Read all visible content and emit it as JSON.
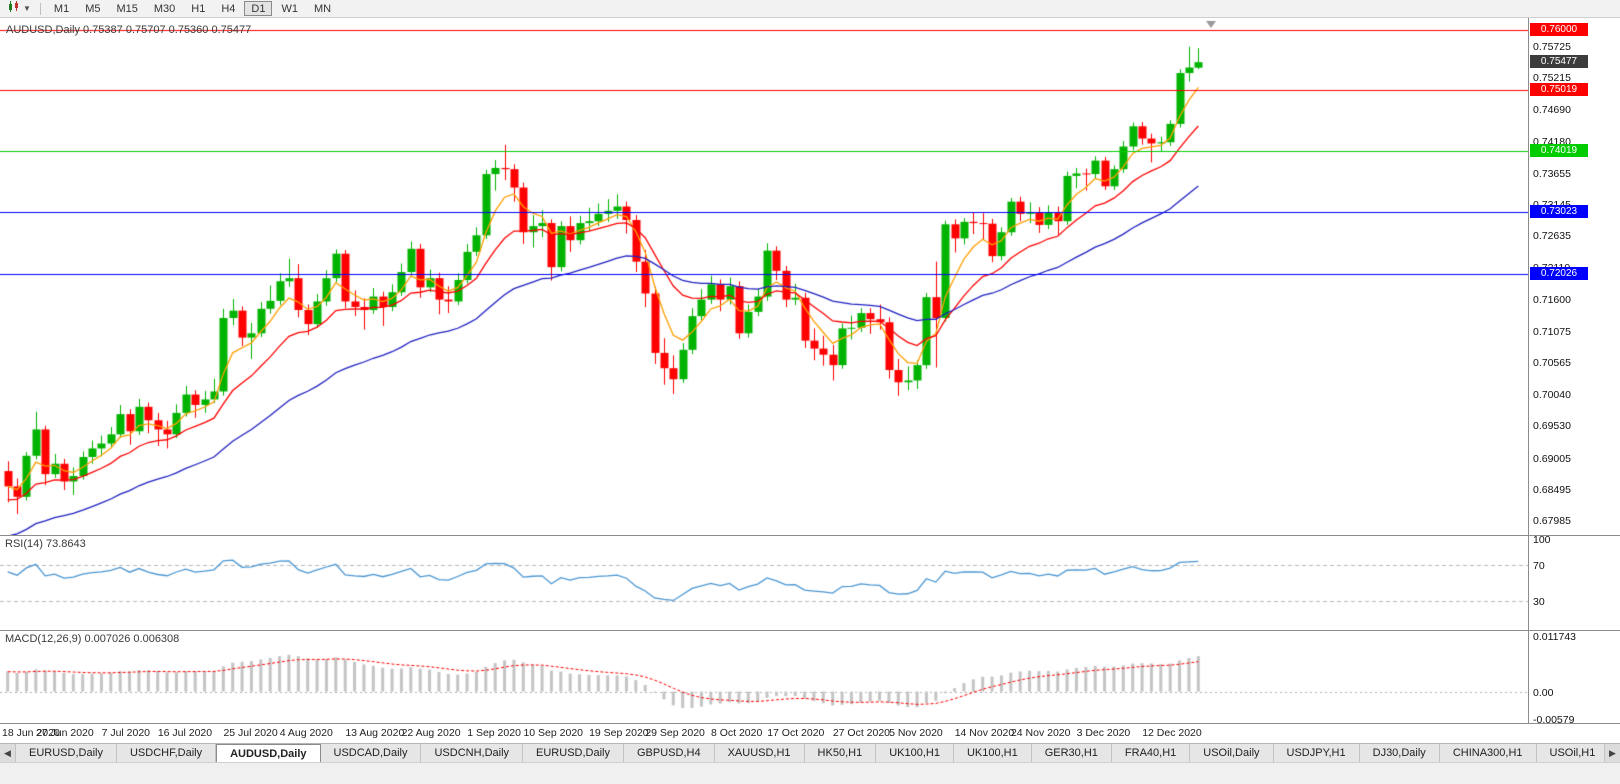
{
  "toolbar": {
    "timeframes": [
      {
        "label": "M1",
        "active": false
      },
      {
        "label": "M5",
        "active": false
      },
      {
        "label": "M15",
        "active": false
      },
      {
        "label": "M30",
        "active": false
      },
      {
        "label": "H1",
        "active": false
      },
      {
        "label": "H4",
        "active": false
      },
      {
        "label": "D1",
        "active": true
      },
      {
        "label": "W1",
        "active": false
      },
      {
        "label": "MN",
        "active": false
      }
    ]
  },
  "chart": {
    "title": "AUDUSD,Daily 0.75387 0.75707 0.75360 0.75477",
    "y_ticks": [
      "0.75725",
      "0.75215",
      "0.74690",
      "0.74180",
      "0.73655",
      "0.73145",
      "0.72635",
      "0.72110",
      "0.71600",
      "0.71075",
      "0.70565",
      "0.70040",
      "0.69530",
      "0.69005",
      "0.68495",
      "0.67985"
    ],
    "current_price_label": "0.75477",
    "current_price_value": 0.75477,
    "current_price_box_color": "#3c3c3c"
  },
  "chart_data": {
    "type": "candlestick",
    "symbol": "AUDUSD",
    "timeframe": "Daily",
    "last_bar": {
      "open": "0.75387",
      "high": "0.75707",
      "low": "0.75360",
      "close": "0.75477"
    },
    "y_axis_top_value": 0.75725,
    "y_axis_bottom_value": 0.67985,
    "up_color": "#00b300",
    "down_color": "#ff0000",
    "hlines": [
      {
        "price": 0.76,
        "label": "0.76000",
        "color": "#ff0000"
      },
      {
        "price": 0.75019,
        "label": "0.75019",
        "color": "#ff0000"
      },
      {
        "price": 0.74019,
        "label": "0.74019",
        "color": "#00cc00"
      },
      {
        "price": 0.73023,
        "label": "0.73023",
        "color": "#0000ff"
      },
      {
        "price": 0.72026,
        "label": "0.72026",
        "color": "#0000ff"
      }
    ],
    "mas": [
      {
        "name": "fast-ma",
        "type": "ema",
        "period": 5,
        "color": "#ff9f00"
      },
      {
        "name": "mid-ma",
        "type": "ema",
        "period": 13,
        "color": "#ff0000"
      },
      {
        "name": "slow-ma",
        "type": "ema",
        "period": 34,
        "color": "#2020c0"
      }
    ],
    "x_labels": [
      {
        "label": "18 Jun 2020",
        "i": 0
      },
      {
        "label": "27 Jun 2020",
        "i": 6
      },
      {
        "label": "7 Jul 2020",
        "i": 13
      },
      {
        "label": "16 Jul 2020",
        "i": 19
      },
      {
        "label": "25 Jul 2020",
        "i": 26
      },
      {
        "label": "4 Aug 2020",
        "i": 32
      },
      {
        "label": "13 Aug 2020",
        "i": 39
      },
      {
        "label": "22 Aug 2020",
        "i": 45
      },
      {
        "label": "1 Sep 2020",
        "i": 52
      },
      {
        "label": "10 Sep 2020",
        "i": 58
      },
      {
        "label": "19 Sep 2020",
        "i": 65
      },
      {
        "label": "29 Sep 2020",
        "i": 71
      },
      {
        "label": "8 Oct 2020",
        "i": 78
      },
      {
        "label": "17 Oct 2020",
        "i": 84
      },
      {
        "label": "27 Oct 2020",
        "i": 91
      },
      {
        "label": "5 Nov 2020",
        "i": 97
      },
      {
        "label": "14 Nov 2020",
        "i": 104
      },
      {
        "label": "24 Nov 2020",
        "i": 110
      },
      {
        "label": "3 Dec 2020",
        "i": 117
      },
      {
        "label": "12 Dec 2020",
        "i": 124
      }
    ],
    "ohlc": [
      [
        0.688,
        0.6896,
        0.6829,
        0.6855
      ],
      [
        0.6855,
        0.6868,
        0.681,
        0.6838
      ],
      [
        0.6838,
        0.6911,
        0.6832,
        0.6905
      ],
      [
        0.6905,
        0.6977,
        0.6899,
        0.6948
      ],
      [
        0.6948,
        0.6954,
        0.6857,
        0.6875
      ],
      [
        0.6875,
        0.6908,
        0.6869,
        0.6892
      ],
      [
        0.6892,
        0.69,
        0.6849,
        0.6863
      ],
      [
        0.6863,
        0.6886,
        0.6841,
        0.6872
      ],
      [
        0.6872,
        0.6912,
        0.6866,
        0.6903
      ],
      [
        0.6903,
        0.693,
        0.6892,
        0.6917
      ],
      [
        0.6917,
        0.6938,
        0.6904,
        0.6925
      ],
      [
        0.6925,
        0.6952,
        0.6918,
        0.694
      ],
      [
        0.694,
        0.6988,
        0.6934,
        0.6973
      ],
      [
        0.6973,
        0.6981,
        0.6923,
        0.6945
      ],
      [
        0.6945,
        0.6998,
        0.6939,
        0.6985
      ],
      [
        0.6985,
        0.6992,
        0.6942,
        0.6963
      ],
      [
        0.6963,
        0.6975,
        0.6921,
        0.6948
      ],
      [
        0.6948,
        0.6962,
        0.6917,
        0.694
      ],
      [
        0.694,
        0.6989,
        0.6934,
        0.6975
      ],
      [
        0.6975,
        0.7019,
        0.6969,
        0.7005
      ],
      [
        0.7005,
        0.7012,
        0.6967,
        0.6988
      ],
      [
        0.6988,
        0.7011,
        0.6975,
        0.6997
      ],
      [
        0.6997,
        0.7031,
        0.6991,
        0.701
      ],
      [
        0.701,
        0.7145,
        0.7003,
        0.713
      ],
      [
        0.713,
        0.7161,
        0.7118,
        0.7142
      ],
      [
        0.7142,
        0.7149,
        0.7084,
        0.7098
      ],
      [
        0.7098,
        0.7122,
        0.7063,
        0.7105
      ],
      [
        0.7105,
        0.7156,
        0.7099,
        0.7145
      ],
      [
        0.7145,
        0.7183,
        0.7137,
        0.7158
      ],
      [
        0.7158,
        0.7203,
        0.7151,
        0.719
      ],
      [
        0.719,
        0.7227,
        0.7181,
        0.7195
      ],
      [
        0.7195,
        0.7218,
        0.7131,
        0.7143
      ],
      [
        0.7143,
        0.7152,
        0.7102,
        0.712
      ],
      [
        0.712,
        0.7169,
        0.7114,
        0.7157
      ],
      [
        0.7157,
        0.7208,
        0.715,
        0.7195
      ],
      [
        0.7195,
        0.7242,
        0.7188,
        0.7235
      ],
      [
        0.7235,
        0.7241,
        0.7146,
        0.7157
      ],
      [
        0.7157,
        0.7175,
        0.7133,
        0.7148
      ],
      [
        0.7148,
        0.7162,
        0.7111,
        0.7143
      ],
      [
        0.7143,
        0.7179,
        0.7137,
        0.7165
      ],
      [
        0.7165,
        0.7173,
        0.7117,
        0.7148
      ],
      [
        0.7148,
        0.7185,
        0.7141,
        0.7172
      ],
      [
        0.7172,
        0.7219,
        0.7166,
        0.7205
      ],
      [
        0.7205,
        0.7255,
        0.7199,
        0.7243
      ],
      [
        0.7243,
        0.7251,
        0.7163,
        0.718
      ],
      [
        0.718,
        0.7209,
        0.7172,
        0.7195
      ],
      [
        0.7195,
        0.7204,
        0.7136,
        0.716
      ],
      [
        0.716,
        0.7182,
        0.7138,
        0.7157
      ],
      [
        0.7157,
        0.7203,
        0.7151,
        0.7192
      ],
      [
        0.7192,
        0.7251,
        0.7186,
        0.7238
      ],
      [
        0.7238,
        0.7278,
        0.7231,
        0.7265
      ],
      [
        0.7265,
        0.7372,
        0.7259,
        0.7365
      ],
      [
        0.7365,
        0.7388,
        0.7338,
        0.7375
      ],
      [
        0.7375,
        0.7413,
        0.7355,
        0.7373
      ],
      [
        0.7373,
        0.7381,
        0.732,
        0.7343
      ],
      [
        0.7343,
        0.7351,
        0.7251,
        0.727
      ],
      [
        0.727,
        0.7298,
        0.7245,
        0.728
      ],
      [
        0.728,
        0.7306,
        0.7262,
        0.7285
      ],
      [
        0.7285,
        0.7291,
        0.7191,
        0.7213
      ],
      [
        0.7213,
        0.7288,
        0.7206,
        0.728
      ],
      [
        0.728,
        0.7296,
        0.7238,
        0.7257
      ],
      [
        0.7257,
        0.7297,
        0.725,
        0.7285
      ],
      [
        0.7285,
        0.731,
        0.7272,
        0.7288
      ],
      [
        0.7288,
        0.7317,
        0.728,
        0.73
      ],
      [
        0.73,
        0.7324,
        0.7287,
        0.7305
      ],
      [
        0.7305,
        0.7332,
        0.7292,
        0.7312
      ],
      [
        0.7312,
        0.732,
        0.7268,
        0.729
      ],
      [
        0.729,
        0.7298,
        0.7205,
        0.7222
      ],
      [
        0.7222,
        0.7241,
        0.7148,
        0.717
      ],
      [
        0.717,
        0.7181,
        0.7055,
        0.7073
      ],
      [
        0.7073,
        0.7097,
        0.7021,
        0.7048
      ],
      [
        0.7048,
        0.7069,
        0.7006,
        0.703
      ],
      [
        0.703,
        0.7089,
        0.7024,
        0.7078
      ],
      [
        0.7078,
        0.7146,
        0.7071,
        0.7133
      ],
      [
        0.7133,
        0.7177,
        0.7126,
        0.716
      ],
      [
        0.716,
        0.7199,
        0.7153,
        0.7185
      ],
      [
        0.7185,
        0.7193,
        0.7141,
        0.716
      ],
      [
        0.716,
        0.7196,
        0.7152,
        0.7182
      ],
      [
        0.7182,
        0.719,
        0.7096,
        0.7105
      ],
      [
        0.7105,
        0.7152,
        0.7098,
        0.714
      ],
      [
        0.714,
        0.7178,
        0.7133,
        0.7165
      ],
      [
        0.7165,
        0.7252,
        0.7158,
        0.724
      ],
      [
        0.724,
        0.7247,
        0.7192,
        0.7207
      ],
      [
        0.7207,
        0.7215,
        0.7148,
        0.716
      ],
      [
        0.716,
        0.7186,
        0.7151,
        0.7163
      ],
      [
        0.7163,
        0.7171,
        0.7081,
        0.7093
      ],
      [
        0.7093,
        0.7113,
        0.7061,
        0.708
      ],
      [
        0.708,
        0.7101,
        0.7052,
        0.707
      ],
      [
        0.707,
        0.7086,
        0.7028,
        0.7053
      ],
      [
        0.7053,
        0.7121,
        0.7047,
        0.7113
      ],
      [
        0.7113,
        0.7134,
        0.7095,
        0.7114
      ],
      [
        0.7114,
        0.7146,
        0.7107,
        0.7138
      ],
      [
        0.7138,
        0.7146,
        0.7104,
        0.7128
      ],
      [
        0.7128,
        0.7152,
        0.7111,
        0.7123
      ],
      [
        0.7123,
        0.7131,
        0.7031,
        0.7045
      ],
      [
        0.7045,
        0.7063,
        0.7003,
        0.7025
      ],
      [
        0.7025,
        0.7051,
        0.7012,
        0.7028
      ],
      [
        0.7028,
        0.7061,
        0.7014,
        0.7053
      ],
      [
        0.7053,
        0.7171,
        0.7047,
        0.7164
      ],
      [
        0.7164,
        0.7222,
        0.7049,
        0.713
      ],
      [
        0.713,
        0.7289,
        0.7124,
        0.7283
      ],
      [
        0.7283,
        0.7291,
        0.7237,
        0.726
      ],
      [
        0.726,
        0.7293,
        0.725,
        0.7287
      ],
      [
        0.7287,
        0.7302,
        0.7267,
        0.7285
      ],
      [
        0.7285,
        0.7301,
        0.7258,
        0.7284
      ],
      [
        0.7284,
        0.7292,
        0.7221,
        0.7231
      ],
      [
        0.7231,
        0.7278,
        0.7224,
        0.727
      ],
      [
        0.727,
        0.7326,
        0.7264,
        0.732
      ],
      [
        0.732,
        0.7328,
        0.7288,
        0.73
      ],
      [
        0.73,
        0.7319,
        0.7285,
        0.7303
      ],
      [
        0.7303,
        0.7311,
        0.7269,
        0.7282
      ],
      [
        0.7282,
        0.7314,
        0.7275,
        0.7303
      ],
      [
        0.7303,
        0.7312,
        0.7266,
        0.7288
      ],
      [
        0.7288,
        0.7369,
        0.7282,
        0.7362
      ],
      [
        0.7362,
        0.7375,
        0.7342,
        0.7366
      ],
      [
        0.7366,
        0.7374,
        0.7338,
        0.7365
      ],
      [
        0.7365,
        0.7394,
        0.7358,
        0.7387
      ],
      [
        0.7387,
        0.7393,
        0.7339,
        0.7345
      ],
      [
        0.7345,
        0.7379,
        0.7339,
        0.7373
      ],
      [
        0.7373,
        0.7419,
        0.7367,
        0.741
      ],
      [
        0.741,
        0.7449,
        0.7404,
        0.7443
      ],
      [
        0.7443,
        0.745,
        0.7413,
        0.7423
      ],
      [
        0.7423,
        0.7431,
        0.7384,
        0.7415
      ],
      [
        0.7415,
        0.7426,
        0.7401,
        0.7417
      ],
      [
        0.7417,
        0.7453,
        0.7411,
        0.7447
      ],
      [
        0.7447,
        0.7536,
        0.7441,
        0.753
      ],
      [
        0.753,
        0.7573,
        0.7516,
        0.7539
      ],
      [
        0.75387,
        0.75707,
        0.7536,
        0.75477
      ]
    ]
  },
  "rsi": {
    "label": "RSI(14) 73.8643",
    "value": 73.8643,
    "line_color": "#4a96d2",
    "levels": [
      {
        "label": "100",
        "value": 100
      },
      {
        "label": "70",
        "value": 70
      },
      {
        "label": "30",
        "value": 30
      }
    ]
  },
  "macd": {
    "label": "MACD(12,26,9) 0.007026 0.006308",
    "histogram_color": "#c4c4c4",
    "signal_color": "#ff0000",
    "axis": [
      {
        "label": "0.011743",
        "value": 0.011743
      },
      {
        "label": "0.00",
        "value": 0
      },
      {
        "label": "-0.00579",
        "value": -0.00579
      }
    ]
  },
  "tabs": {
    "scroll_left_glyph": "◀",
    "scroll_right_glyph": "▶",
    "items": [
      {
        "label": "EURUSD,Daily",
        "active": false
      },
      {
        "label": "USDCHF,Daily",
        "active": false
      },
      {
        "label": "AUDUSD,Daily",
        "active": true
      },
      {
        "label": "USDCAD,Daily",
        "active": false
      },
      {
        "label": "USDCNH,Daily",
        "active": false
      },
      {
        "label": "EURUSD,Daily",
        "active": false
      },
      {
        "label": "GBPUSD,H4",
        "active": false
      },
      {
        "label": "XAUUSD,H1",
        "active": false
      },
      {
        "label": "HK50,H1",
        "active": false
      },
      {
        "label": "UK100,H1",
        "active": false
      },
      {
        "label": "UK100,H1",
        "active": false
      },
      {
        "label": "GER30,H1",
        "active": false
      },
      {
        "label": "FRA40,H1",
        "active": false
      },
      {
        "label": "USOil,Daily",
        "active": false
      },
      {
        "label": "USDJPY,H1",
        "active": false
      },
      {
        "label": "DJ30,Daily",
        "active": false
      },
      {
        "label": "CHINA300,H1",
        "active": false
      },
      {
        "label": "USOil,H1",
        "active": false
      }
    ]
  }
}
